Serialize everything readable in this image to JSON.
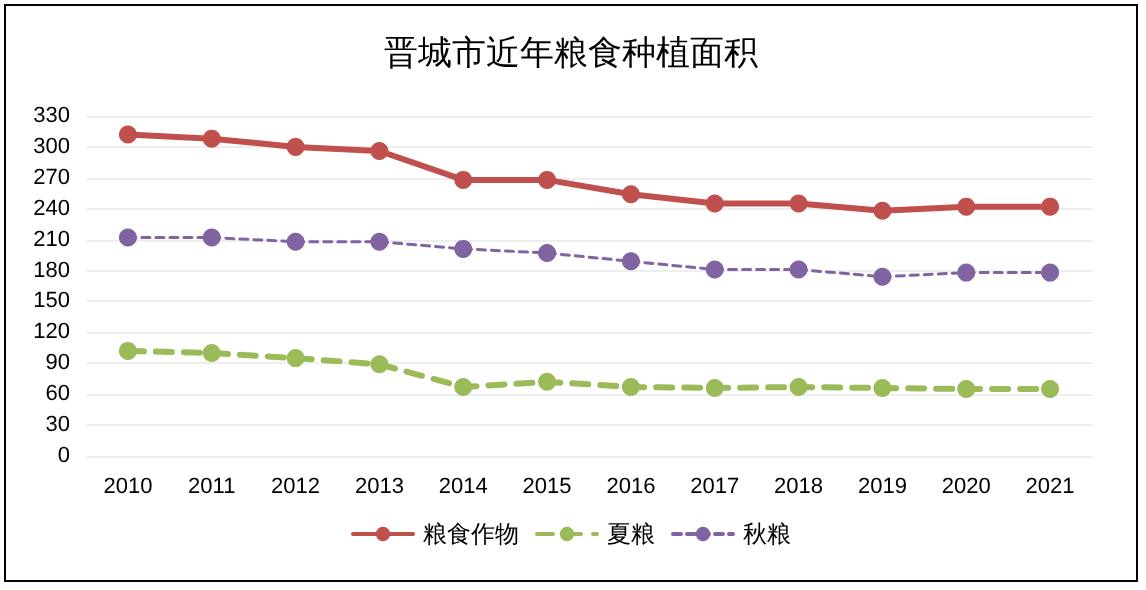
{
  "chart_data": {
    "type": "line",
    "title": "晋城市近年粮食种植面积",
    "categories": [
      "2010",
      "2011",
      "2012",
      "2013",
      "2014",
      "2015",
      "2016",
      "2017",
      "2018",
      "2019",
      "2020",
      "2021"
    ],
    "series": [
      {
        "name": "粮食作物",
        "color": "#c0504d",
        "line_style": "solid",
        "values": [
          312,
          308,
          300,
          296,
          268,
          268,
          254,
          245,
          245,
          238,
          242,
          242
        ]
      },
      {
        "name": "夏粮",
        "color": "#9bbb59",
        "line_style": "dashed",
        "values": [
          102,
          100,
          95,
          89,
          67,
          72,
          67,
          66,
          67,
          66,
          65,
          65
        ]
      },
      {
        "name": "秋粮",
        "color": "#8064a2",
        "line_style": "dotted",
        "values": [
          212,
          212,
          208,
          208,
          201,
          197,
          189,
          181,
          181,
          174,
          178,
          178
        ]
      }
    ],
    "ylim": [
      0,
      330
    ],
    "yticks": [
      0,
      30,
      60,
      90,
      120,
      150,
      180,
      210,
      240,
      270,
      300,
      330
    ],
    "grid": "y",
    "legend": "bottom",
    "marker": "circle"
  }
}
